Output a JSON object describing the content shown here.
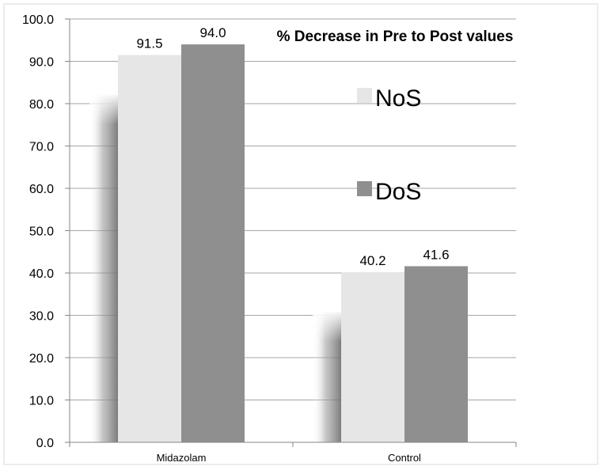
{
  "chart_data": {
    "type": "bar",
    "title": "% Decrease in Pre to Post values",
    "xlabel": "",
    "ylabel": "",
    "categories": [
      "Midazolam",
      "Control"
    ],
    "series": [
      {
        "name": "NoS",
        "values": [
          91.5,
          40.2
        ],
        "color": "#e6e6e6"
      },
      {
        "name": "DoS",
        "values": [
          94.0,
          41.6
        ],
        "color": "#8f8f8f"
      }
    ],
    "ylim": [
      0,
      100
    ],
    "yticks": [
      "0.0",
      "10.0",
      "20.0",
      "30.0",
      "40.0",
      "50.0",
      "60.0",
      "70.0",
      "80.0",
      "90.0",
      "100.0"
    ],
    "data_labels": [
      [
        "91.5",
        "40.2"
      ],
      [
        "94.0",
        "41.6"
      ]
    ],
    "grid": true,
    "legend_position": "inside-right"
  }
}
